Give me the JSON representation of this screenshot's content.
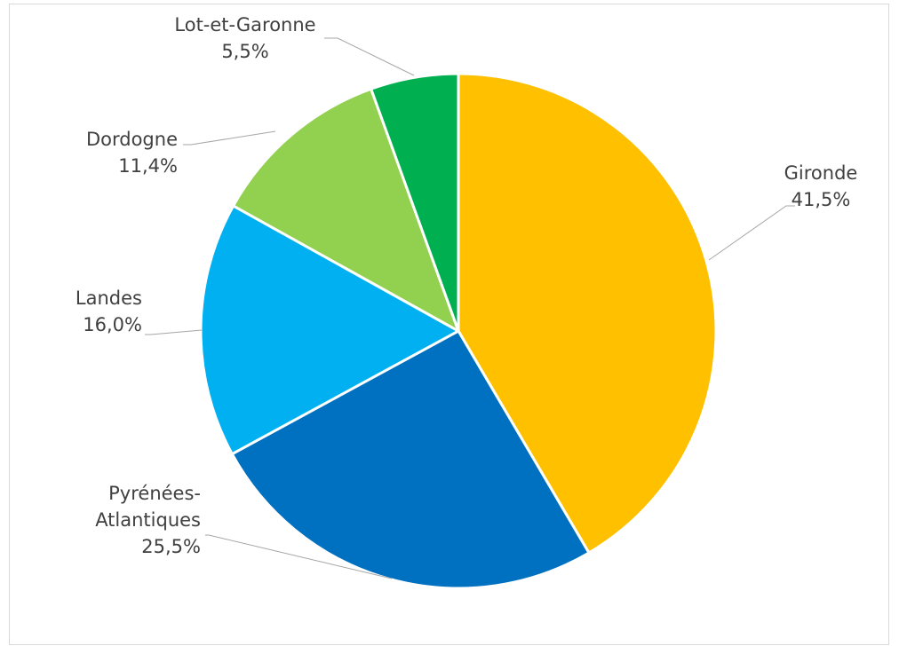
{
  "chart_data": {
    "type": "pie",
    "title": "",
    "slices": [
      {
        "label": "Gironde",
        "value": 41.5,
        "display": "41,5%",
        "color": "#FFC000"
      },
      {
        "label": "Pyrénées-Atlantiques",
        "value": 25.5,
        "display": "25,5%",
        "color": "#0070C0",
        "label_lines": [
          "Pyrénées-",
          "Atlantiques"
        ]
      },
      {
        "label": "Landes",
        "value": 16.0,
        "display": "16,0%",
        "color": "#00B0F0"
      },
      {
        "label": "Dordogne",
        "value": 11.4,
        "display": "11,4%",
        "color": "#92D050"
      },
      {
        "label": "Lot-et-Garonne",
        "value": 5.5,
        "display": "5,5%",
        "color": "#00B050"
      }
    ],
    "start": "12 o'clock",
    "direction": "clockwise",
    "legend": "none",
    "data_labels": "outside with leader lines"
  },
  "frame": {
    "border_color": "#D9D9D9"
  }
}
